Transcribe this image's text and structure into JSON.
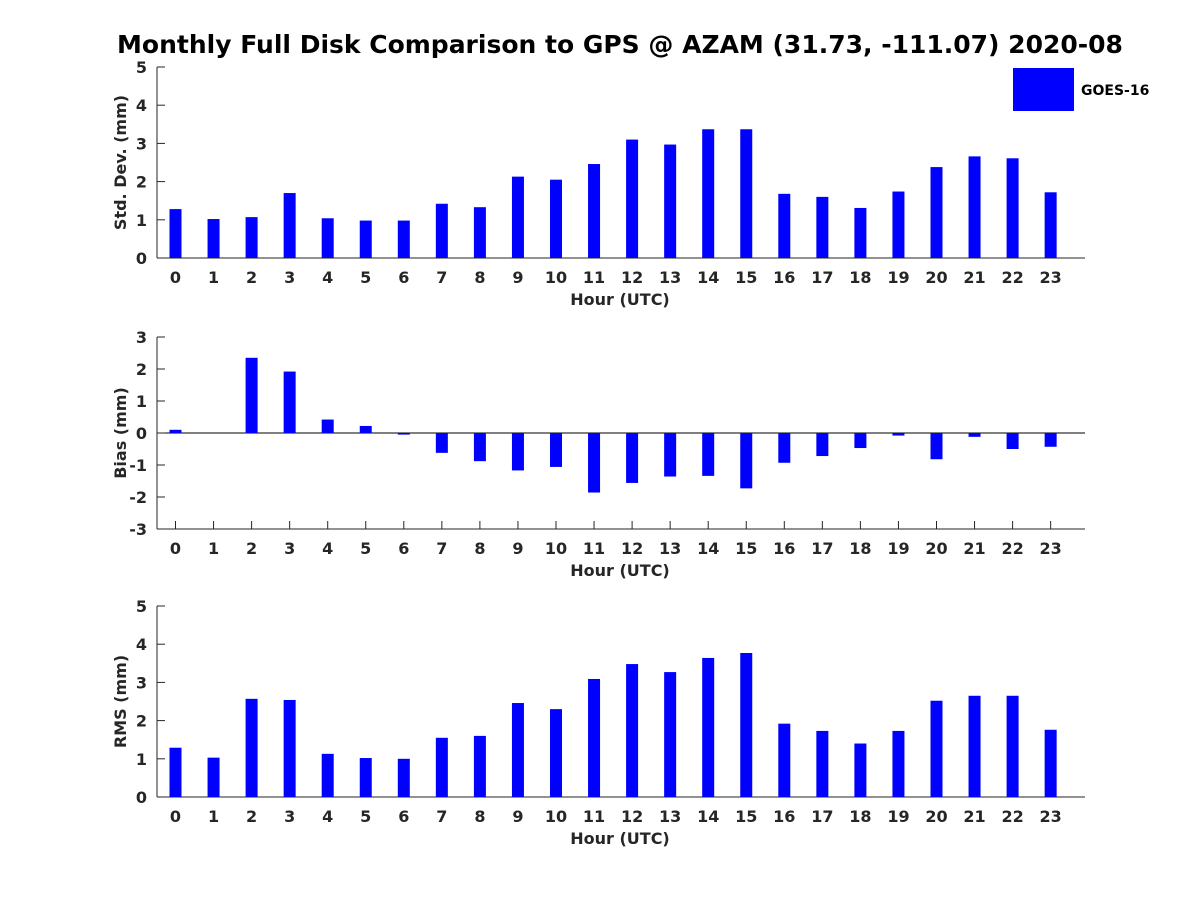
{
  "title": "Monthly Full Disk Comparison to GPS @ AZAM (31.73, -111.07) 2020-08",
  "legend": {
    "label": "GOES-16",
    "position": "top-right"
  },
  "colors": {
    "bar": "#0000ff",
    "axis": "#262626",
    "zero_line": "#000000"
  },
  "chart_data": [
    {
      "type": "bar",
      "title": "",
      "xlabel": "Hour (UTC)",
      "ylabel": "Std. Dev. (mm)",
      "ylim": [
        0,
        5
      ],
      "yticks": [
        0,
        1,
        2,
        3,
        4,
        5
      ],
      "grid": false,
      "categories": [
        "0",
        "1",
        "2",
        "3",
        "4",
        "5",
        "6",
        "7",
        "8",
        "9",
        "10",
        "11",
        "12",
        "13",
        "14",
        "15",
        "16",
        "17",
        "18",
        "19",
        "20",
        "21",
        "22",
        "23"
      ],
      "series": [
        {
          "name": "GOES-16",
          "values": [
            1.28,
            1.02,
            1.07,
            1.7,
            1.04,
            0.98,
            0.98,
            1.42,
            1.33,
            2.13,
            2.05,
            2.46,
            3.1,
            2.97,
            3.37,
            3.37,
            1.68,
            1.6,
            1.31,
            1.74,
            2.38,
            2.66,
            2.61,
            1.72
          ]
        }
      ]
    },
    {
      "type": "bar",
      "title": "",
      "xlabel": "Hour (UTC)",
      "ylabel": "Bias (mm)",
      "ylim": [
        -3,
        3
      ],
      "yticks": [
        -3,
        -2,
        -1,
        0,
        1,
        2,
        3
      ],
      "grid": false,
      "categories": [
        "0",
        "1",
        "2",
        "3",
        "4",
        "5",
        "6",
        "7",
        "8",
        "9",
        "10",
        "11",
        "12",
        "13",
        "14",
        "15",
        "16",
        "17",
        "18",
        "19",
        "20",
        "21",
        "22",
        "23"
      ],
      "series": [
        {
          "name": "GOES-16",
          "values": [
            0.1,
            0.0,
            2.35,
            1.92,
            0.42,
            0.22,
            -0.05,
            -0.62,
            -0.88,
            -1.17,
            -1.06,
            -1.86,
            -1.56,
            -1.36,
            -1.34,
            -1.73,
            -0.93,
            -0.72,
            -0.47,
            -0.08,
            -0.82,
            -0.12,
            -0.5,
            -0.43
          ]
        }
      ]
    },
    {
      "type": "bar",
      "title": "",
      "xlabel": "Hour (UTC)",
      "ylabel": "RMS (mm)",
      "ylim": [
        0,
        5
      ],
      "yticks": [
        0,
        1,
        2,
        3,
        4,
        5
      ],
      "grid": false,
      "categories": [
        "0",
        "1",
        "2",
        "3",
        "4",
        "5",
        "6",
        "7",
        "8",
        "9",
        "10",
        "11",
        "12",
        "13",
        "14",
        "15",
        "16",
        "17",
        "18",
        "19",
        "20",
        "21",
        "22",
        "23"
      ],
      "series": [
        {
          "name": "GOES-16",
          "values": [
            1.29,
            1.03,
            2.57,
            2.54,
            1.13,
            1.02,
            1.0,
            1.55,
            1.6,
            2.46,
            2.3,
            3.09,
            3.48,
            3.27,
            3.64,
            3.77,
            1.92,
            1.73,
            1.4,
            1.73,
            2.52,
            2.65,
            2.65,
            1.76
          ]
        }
      ]
    }
  ]
}
